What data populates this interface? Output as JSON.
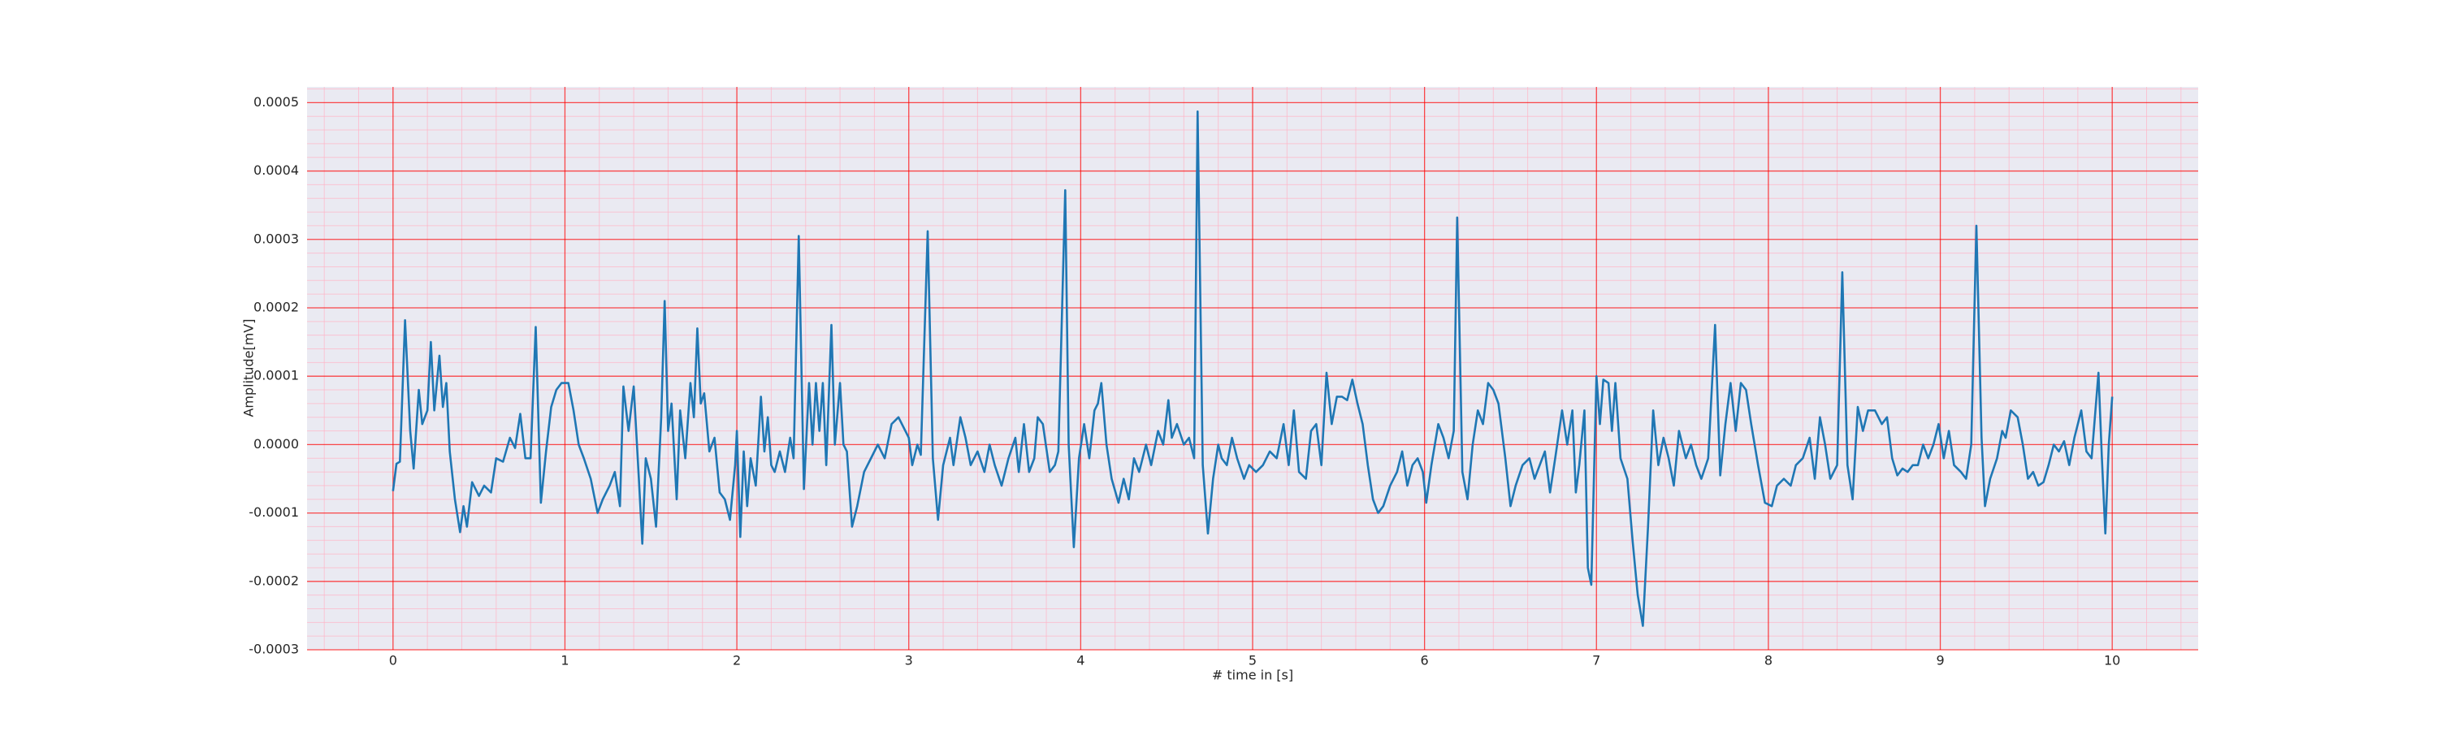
{
  "chart_data": {
    "type": "line",
    "xlabel": "# time in [s]",
    "ylabel": "Amplitude[mV]",
    "color": "#1f77b4",
    "background": "#eaeaf2",
    "grid": true,
    "minor_grid": true,
    "grid_color": "#ff0000",
    "minor_grid_color": "#ffb3c6",
    "xlim": [
      -0.5,
      10.5
    ],
    "ylim": [
      -0.0003,
      0.000523
    ],
    "xticks": [
      0,
      1,
      2,
      3,
      4,
      5,
      6,
      7,
      8,
      9,
      10
    ],
    "yticks": [
      -0.0003,
      -0.0002,
      -0.0001,
      {
        "value": 0,
        "label": "0.0000"
      },
      0.0001,
      0.0002,
      0.0003,
      0.0004,
      0.0005
    ],
    "x": [
      0.0,
      0.02,
      0.04,
      0.07,
      0.1,
      0.12,
      0.15,
      0.17,
      0.2,
      0.22,
      0.24,
      0.27,
      0.29,
      0.31,
      0.33,
      0.36,
      0.39,
      0.41,
      0.43,
      0.46,
      0.5,
      0.53,
      0.57,
      0.6,
      0.64,
      0.68,
      0.71,
      0.74,
      0.77,
      0.8,
      0.83,
      0.86,
      0.89,
      0.92,
      0.95,
      0.98,
      1.02,
      1.05,
      1.08,
      1.11,
      1.15,
      1.19,
      1.22,
      1.26,
      1.29,
      1.32,
      1.34,
      1.37,
      1.4,
      1.43,
      1.45,
      1.47,
      1.5,
      1.53,
      1.56,
      1.58,
      1.6,
      1.62,
      1.65,
      1.67,
      1.7,
      1.73,
      1.75,
      1.77,
      1.79,
      1.81,
      1.84,
      1.87,
      1.9,
      1.93,
      1.96,
      1.99,
      2.0,
      2.02,
      2.04,
      2.06,
      2.08,
      2.11,
      2.14,
      2.16,
      2.18,
      2.2,
      2.22,
      2.25,
      2.28,
      2.31,
      2.33,
      2.36,
      2.39,
      2.42,
      2.44,
      2.46,
      2.48,
      2.5,
      2.52,
      2.55,
      2.57,
      2.6,
      2.62,
      2.64,
      2.67,
      2.7,
      2.74,
      2.78,
      2.82,
      2.86,
      2.9,
      2.94,
      2.97,
      3.0,
      3.02,
      3.05,
      3.07,
      3.11,
      3.14,
      3.17,
      3.2,
      3.24,
      3.26,
      3.3,
      3.33,
      3.36,
      3.4,
      3.44,
      3.47,
      3.5,
      3.54,
      3.58,
      3.62,
      3.64,
      3.67,
      3.7,
      3.73,
      3.75,
      3.78,
      3.82,
      3.85,
      3.87,
      3.91,
      3.93,
      3.96,
      3.99,
      4.02,
      4.05,
      4.08,
      4.1,
      4.12,
      4.15,
      4.18,
      4.22,
      4.25,
      4.28,
      4.31,
      4.34,
      4.38,
      4.41,
      4.45,
      4.48,
      4.51,
      4.53,
      4.56,
      4.6,
      4.63,
      4.66,
      4.68,
      4.71,
      4.74,
      4.77,
      4.8,
      4.82,
      4.85,
      4.88,
      4.91,
      4.95,
      4.98,
      5.02,
      5.06,
      5.1,
      5.14,
      5.18,
      5.21,
      5.24,
      5.27,
      5.31,
      5.34,
      5.37,
      5.4,
      5.43,
      5.46,
      5.49,
      5.52,
      5.55,
      5.58,
      5.61,
      5.64,
      5.67,
      5.7,
      5.73,
      5.76,
      5.8,
      5.84,
      5.87,
      5.9,
      5.93,
      5.96,
      5.99,
      6.01,
      6.04,
      6.08,
      6.11,
      6.14,
      6.17,
      6.19,
      6.22,
      6.25,
      6.28,
      6.31,
      6.34,
      6.37,
      6.4,
      6.43,
      6.47,
      6.5,
      6.53,
      6.57,
      6.61,
      6.64,
      6.67,
      6.7,
      6.73,
      6.76,
      6.8,
      6.83,
      6.86,
      6.88,
      6.9,
      6.93,
      6.95,
      6.97,
      6.99,
      7.0,
      7.02,
      7.04,
      7.07,
      7.09,
      7.11,
      7.14,
      7.18,
      7.21,
      7.24,
      7.27,
      7.3,
      7.33,
      7.36,
      7.39,
      7.42,
      7.45,
      7.48,
      7.52,
      7.55,
      7.58,
      7.61,
      7.65,
      7.69,
      7.72,
      7.75,
      7.78,
      7.81,
      7.84,
      7.87,
      7.9,
      7.94,
      7.98,
      8.02,
      8.05,
      8.09,
      8.13,
      8.16,
      8.2,
      8.24,
      8.27,
      8.3,
      8.33,
      8.36,
      8.4,
      8.43,
      8.46,
      8.49,
      8.52,
      8.55,
      8.58,
      8.62,
      8.66,
      8.69,
      8.72,
      8.75,
      8.78,
      8.81,
      8.84,
      8.87,
      8.9,
      8.93,
      8.96,
      8.99,
      9.02,
      9.05,
      9.08,
      9.12,
      9.15,
      9.18,
      9.21,
      9.24,
      9.26,
      9.29,
      9.33,
      9.36,
      9.38,
      9.41,
      9.45,
      9.48,
      9.51,
      9.54,
      9.57,
      9.6,
      9.63,
      9.66,
      9.69,
      9.72,
      9.75,
      9.78,
      9.82,
      9.85,
      9.88,
      9.92,
      9.94,
      9.96,
      9.98,
      10.0
    ],
    "values": [
      -6.8e-05,
      -2.8e-05,
      -2.5e-05,
      0.000182,
      2e-05,
      -3.5e-05,
      8e-05,
      3e-05,
      5e-05,
      0.00015,
      5e-05,
      0.00013,
      5.5e-05,
      9e-05,
      -1e-05,
      -8e-05,
      -0.000128,
      -9e-05,
      -0.00012,
      -5.5e-05,
      -7.5e-05,
      -6e-05,
      -7e-05,
      -2e-05,
      -2.5e-05,
      1e-05,
      -5e-06,
      4.5e-05,
      -2e-05,
      -2e-05,
      0.000172,
      -8.5e-05,
      -1e-05,
      5.5e-05,
      8e-05,
      9e-05,
      9e-05,
      5e-05,
      0,
      -2e-05,
      -5e-05,
      -0.0001,
      -8e-05,
      -6e-05,
      -4e-05,
      -9e-05,
      8.5e-05,
      2e-05,
      8.5e-05,
      -5e-05,
      -0.000145,
      -2e-05,
      -5e-05,
      -0.00012,
      4e-05,
      0.00021,
      2e-05,
      6e-05,
      -8e-05,
      5e-05,
      -2e-05,
      9e-05,
      4e-05,
      0.00017,
      6e-05,
      7.5e-05,
      -1e-05,
      1e-05,
      -7e-05,
      -8e-05,
      -0.00011,
      -3e-05,
      2e-05,
      -0.000135,
      -1e-05,
      -9e-05,
      -2e-05,
      -6e-05,
      7e-05,
      -1e-05,
      4e-05,
      -3e-05,
      -4e-05,
      -1e-05,
      -4e-05,
      1e-05,
      -2e-05,
      0.000305,
      -6.5e-05,
      9e-05,
      0,
      9e-05,
      2e-05,
      9e-05,
      -3e-05,
      0.000175,
      0,
      9e-05,
      0,
      -1e-05,
      -0.00012,
      -9e-05,
      -4e-05,
      -2e-05,
      0,
      -2e-05,
      3e-05,
      4e-05,
      2.5e-05,
      1e-05,
      -3e-05,
      0,
      -1.5e-05,
      0.000312,
      -2e-05,
      -0.00011,
      -3e-05,
      1e-05,
      -3e-05,
      4e-05,
      1e-05,
      -3e-05,
      -1e-05,
      -4e-05,
      0,
      -3e-05,
      -6e-05,
      -2e-05,
      1e-05,
      -4e-05,
      3e-05,
      -4e-05,
      -2e-05,
      4e-05,
      3e-05,
      -4e-05,
      -3e-05,
      -1e-05,
      0.000372,
      0,
      -0.00015,
      -2e-05,
      3e-05,
      -2e-05,
      5e-05,
      6e-05,
      9e-05,
      0,
      -5e-05,
      -8.5e-05,
      -5e-05,
      -8e-05,
      -2e-05,
      -4e-05,
      0,
      -3e-05,
      2e-05,
      0,
      6.5e-05,
      1e-05,
      3e-05,
      0,
      1e-05,
      -2e-05,
      0.000487,
      -3e-05,
      -0.00013,
      -5e-05,
      0,
      -2e-05,
      -3e-05,
      1e-05,
      -2e-05,
      -5e-05,
      -3e-05,
      -4e-05,
      -3e-05,
      -1e-05,
      -2e-05,
      3e-05,
      -3e-05,
      5e-05,
      -4e-05,
      -5e-05,
      2e-05,
      3e-05,
      -3e-05,
      0.000105,
      3e-05,
      7e-05,
      7e-05,
      6.5e-05,
      9.5e-05,
      6e-05,
      3e-05,
      -3e-05,
      -8e-05,
      -0.0001,
      -9e-05,
      -6e-05,
      -4e-05,
      -1e-05,
      -6e-05,
      -3e-05,
      -2e-05,
      -4e-05,
      -8.5e-05,
      -3e-05,
      3e-05,
      1e-05,
      -2e-05,
      2e-05,
      0.000332,
      -4e-05,
      -8e-05,
      0,
      5e-05,
      3e-05,
      9e-05,
      8e-05,
      6e-05,
      -2e-05,
      -9e-05,
      -6e-05,
      -3e-05,
      -2e-05,
      -5e-05,
      -3e-05,
      -1e-05,
      -7e-05,
      -2e-05,
      5e-05,
      0,
      5e-05,
      -7e-05,
      -3e-05,
      5e-05,
      -0.00018,
      -0.000205,
      0,
      0.0001,
      3e-05,
      9.5e-05,
      9e-05,
      2e-05,
      9e-05,
      -2e-05,
      -5e-05,
      -0.00014,
      -0.00022,
      -0.000265,
      -0.00012,
      5e-05,
      -3e-05,
      1e-05,
      -2e-05,
      -6e-05,
      2e-05,
      -2e-05,
      0,
      -3e-05,
      -5e-05,
      -2e-05,
      0.000175,
      -4.5e-05,
      3e-05,
      9e-05,
      2e-05,
      9e-05,
      8e-05,
      3e-05,
      -3e-05,
      -8.5e-05,
      -9e-05,
      -6e-05,
      -5e-05,
      -6e-05,
      -3e-05,
      -2e-05,
      1e-05,
      -5e-05,
      4e-05,
      0,
      -5e-05,
      -3e-05,
      0.000252,
      -3e-05,
      -8e-05,
      5.5e-05,
      2e-05,
      5e-05,
      5e-05,
      3e-05,
      4e-05,
      -2e-05,
      -4.5e-05,
      -3.5e-05,
      -4e-05,
      -3e-05,
      -3e-05,
      0,
      -2e-05,
      0,
      3e-05,
      -2e-05,
      2e-05,
      -3e-05,
      -4e-05,
      -5e-05,
      0,
      0.00032,
      1e-05,
      -9e-05,
      -5e-05,
      -2e-05,
      2e-05,
      1e-05,
      5e-05,
      4e-05,
      0,
      -5e-05,
      -4e-05,
      -6e-05,
      -5.5e-05,
      -3e-05,
      0,
      -1e-05,
      5e-06,
      -3e-05,
      1e-05,
      5e-05,
      -1e-05,
      -2e-05,
      0.000105,
      -2e-05,
      -0.00013,
      0,
      7e-05
    ]
  }
}
